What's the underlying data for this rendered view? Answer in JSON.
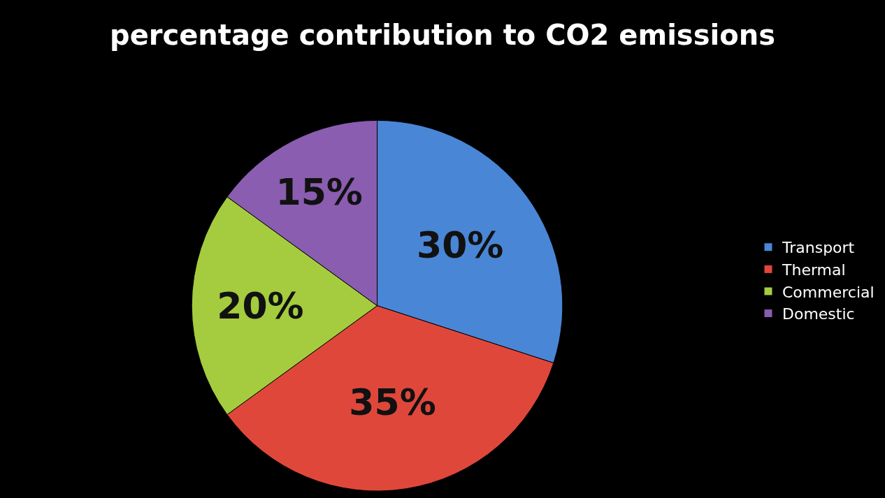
{
  "chart_data": {
    "type": "pie",
    "title": "percentage contribution to CO2 emissions",
    "categories": [
      "Transport",
      "Thermal",
      "Commercial",
      "Domestic"
    ],
    "values": [
      30,
      35,
      20,
      15
    ],
    "colors": [
      "#4a86d6",
      "#e0473b",
      "#a4cc3e",
      "#8a5db0"
    ],
    "value_labels": [
      "30%",
      "35%",
      "20%",
      "15%"
    ],
    "legend": "right"
  }
}
